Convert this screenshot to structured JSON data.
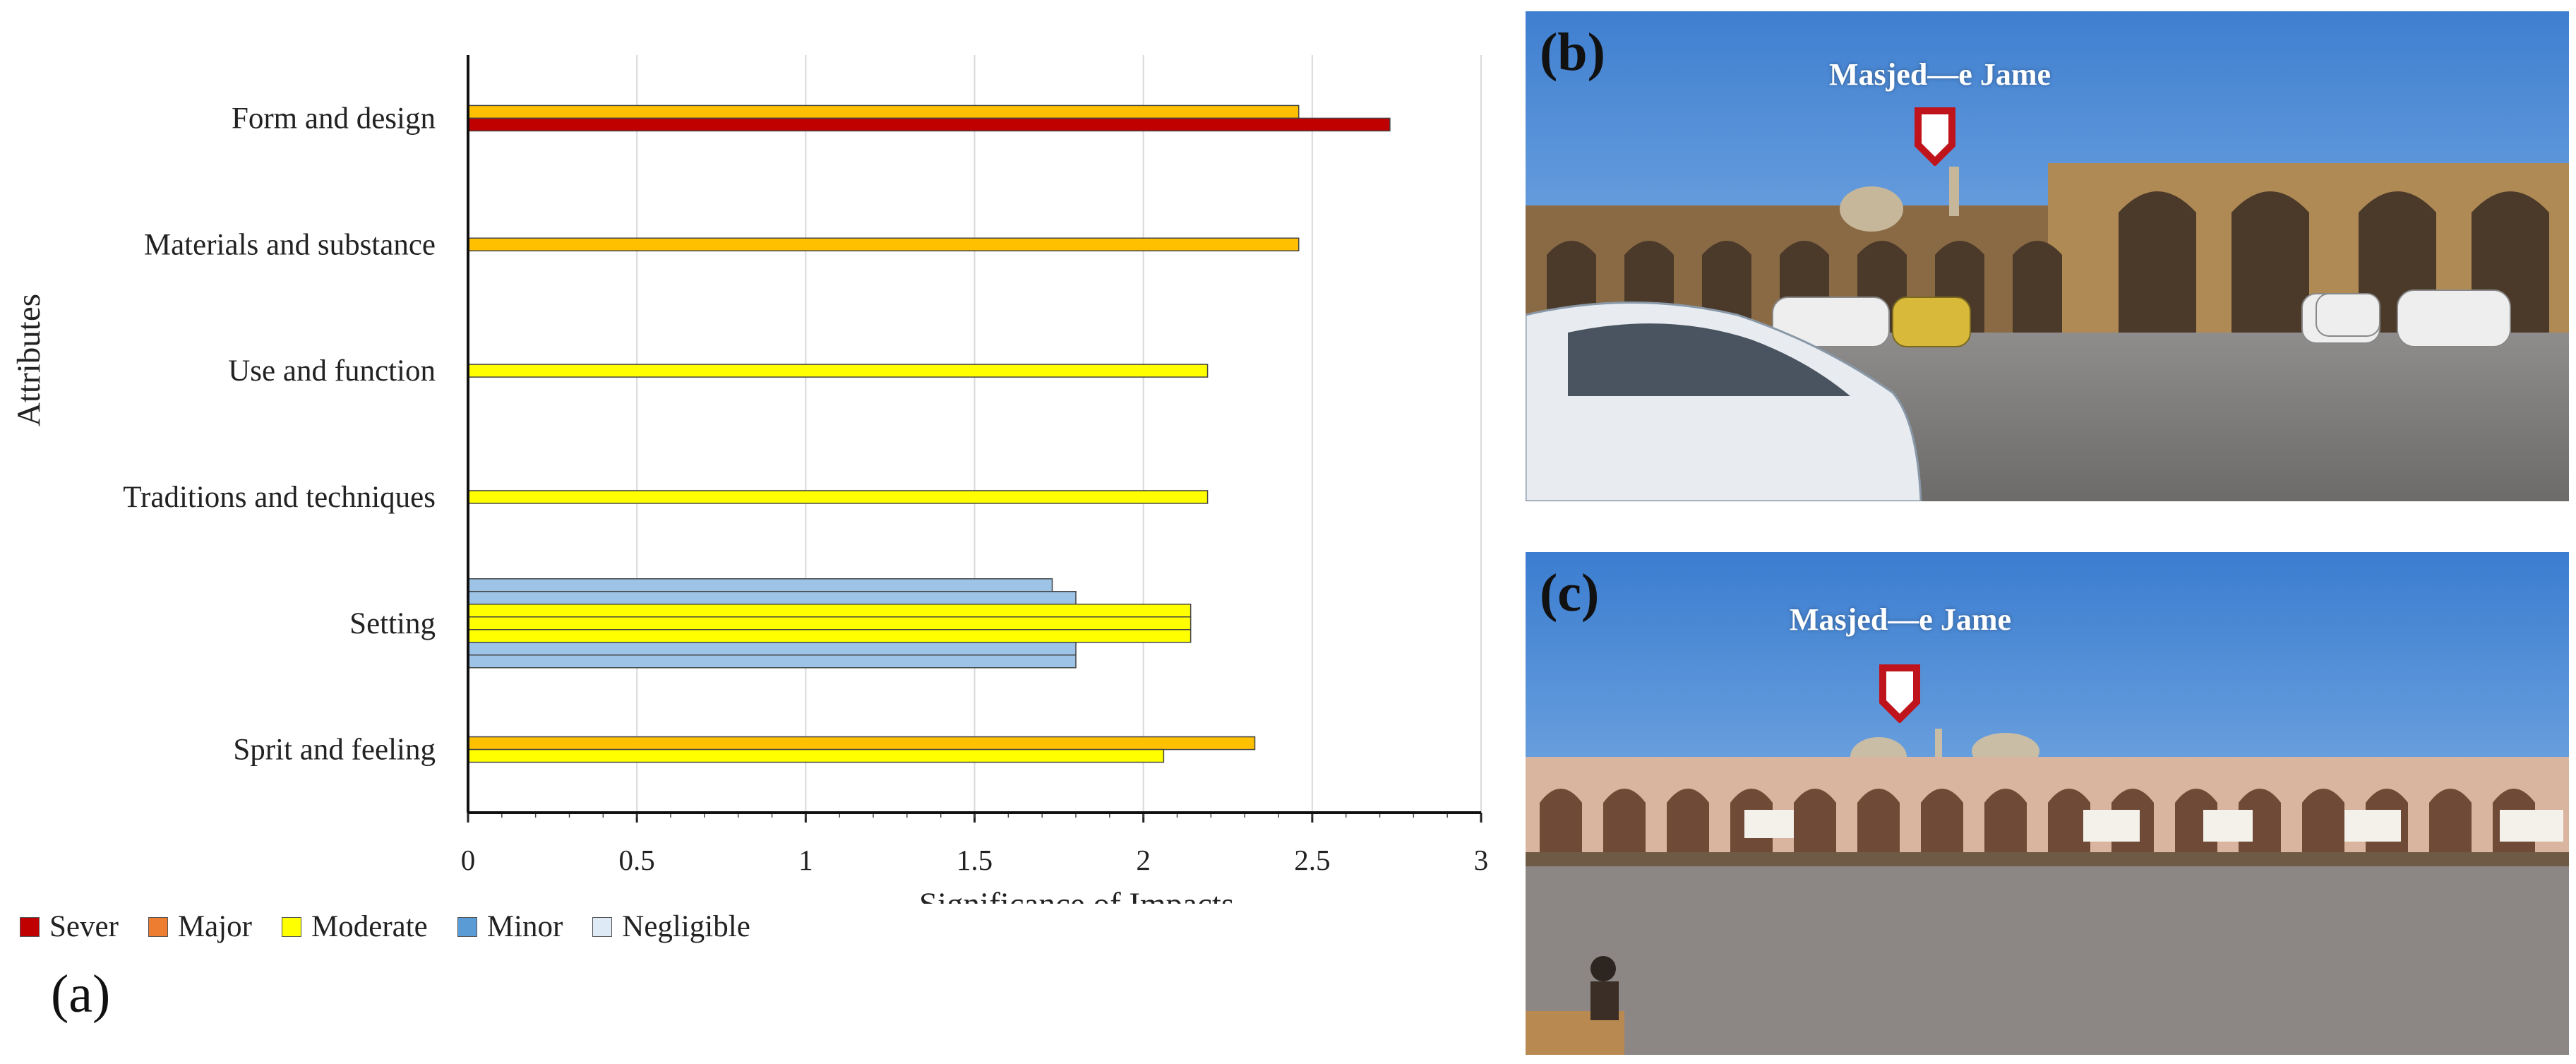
{
  "panel_a_label": "(a)",
  "chart_data": {
    "type": "bar",
    "orientation": "horizontal",
    "ylabel": "Attributes",
    "xlabel": "Significance of Impacts",
    "xlim": [
      0,
      3
    ],
    "xticks": [
      "0",
      "0.5",
      "1",
      "1.5",
      "2",
      "2.5",
      "3"
    ],
    "grid": "vertical",
    "legend_placement": "bottom-left",
    "legend": [
      {
        "name": "Sever",
        "color": "#c00000"
      },
      {
        "name": "Major",
        "color": "#ed7d31"
      },
      {
        "name": "Moderate",
        "color": "#ffff00"
      },
      {
        "name": "Minor",
        "color": "#5b9bd5"
      },
      {
        "name": "Negligible",
        "color": "#deebf7"
      }
    ],
    "categories": [
      {
        "label": "Form and design",
        "bars": [
          {
            "value": 2.46,
            "color": "#ffc000"
          },
          {
            "value": 2.73,
            "color": "#c00000"
          }
        ]
      },
      {
        "label": "Materials and substance",
        "bars": [
          {
            "value": 2.46,
            "color": "#ffc000"
          }
        ]
      },
      {
        "label": "Use and function",
        "bars": [
          {
            "value": 2.19,
            "color": "#ffff00"
          }
        ]
      },
      {
        "label": "Traditions and techniques",
        "bars": [
          {
            "value": 2.19,
            "color": "#ffff00"
          }
        ]
      },
      {
        "label": "Setting",
        "bars": [
          {
            "value": 1.73,
            "color": "#9dc3e6"
          },
          {
            "value": 1.8,
            "color": "#9dc3e6"
          },
          {
            "value": 2.14,
            "color": "#ffff00"
          },
          {
            "value": 2.14,
            "color": "#ffff00"
          },
          {
            "value": 2.14,
            "color": "#ffff00"
          },
          {
            "value": 1.8,
            "color": "#9dc3e6"
          },
          {
            "value": 1.8,
            "color": "#9dc3e6"
          }
        ]
      },
      {
        "label": "Sprit and feeling",
        "bars": [
          {
            "value": 2.33,
            "color": "#ffc000"
          },
          {
            "value": 2.06,
            "color": "#ffff00"
          }
        ]
      }
    ]
  },
  "photos": {
    "b": {
      "label": "(b)",
      "caption": "Masjed—e Jame",
      "marker_color": "#c0141c"
    },
    "c": {
      "label": "(c)",
      "caption": "Masjed—e Jame",
      "marker_color": "#c0141c"
    }
  }
}
